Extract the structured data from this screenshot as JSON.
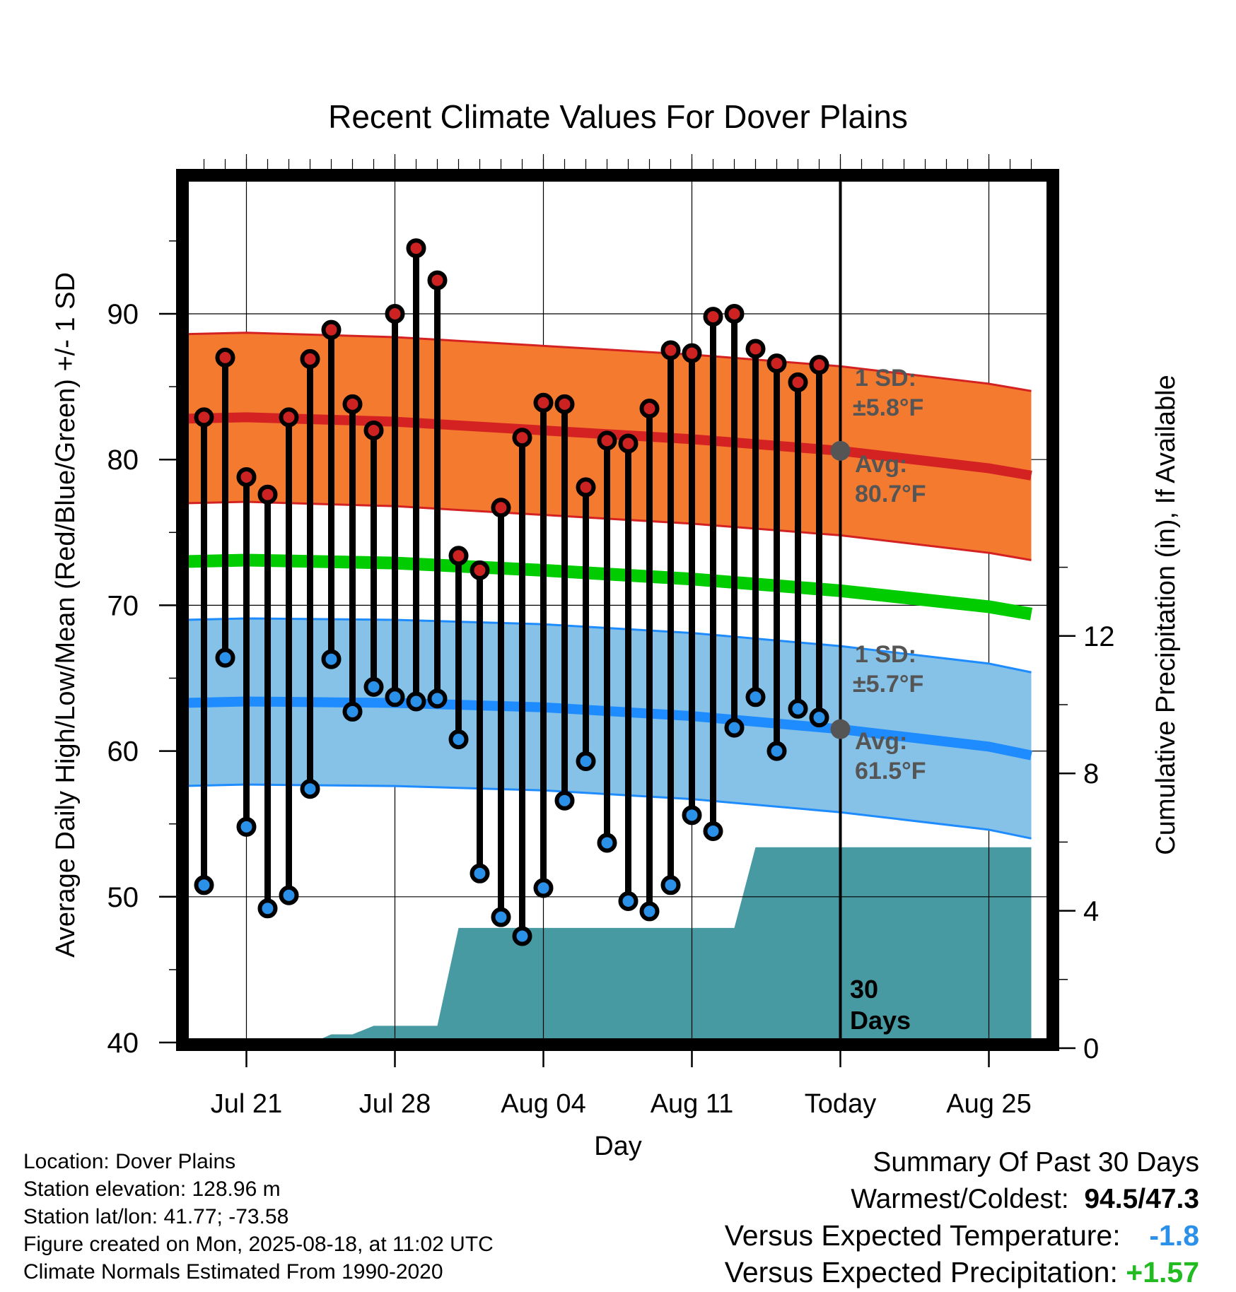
{
  "chart_data": {
    "type": "line",
    "title": "Recent Climate Values For Dover Plains",
    "xlabel": "Day",
    "ylabel_left": "Average Daily High/Low/Mean (Red/Blue/Green) +/- 1 SD",
    "ylabel_right": "Cumulative Precipitation (in), If Available",
    "x_range": [
      "2025-07-18",
      "2025-08-27"
    ],
    "ylim_left": [
      40,
      100
    ],
    "ylim_right": [
      0,
      18.3
    ],
    "x_ticks": [
      {
        "date": "2025-07-21",
        "label": "Jul 21"
      },
      {
        "date": "2025-07-28",
        "label": "Jul 28"
      },
      {
        "date": "2025-08-04",
        "label": "Aug 04"
      },
      {
        "date": "2025-08-11",
        "label": "Aug 11"
      },
      {
        "date": "2025-08-18",
        "label": "Today"
      },
      {
        "date": "2025-08-25",
        "label": "Aug 25"
      }
    ],
    "y_ticks_left": [
      40,
      50,
      60,
      70,
      80,
      90
    ],
    "y_ticks_right": [
      0,
      4,
      8,
      12
    ],
    "grid": true,
    "colors": {
      "high_band": "#f47a30",
      "high_line": "#d42222",
      "low_band": "#86c2e8",
      "low_line": "#1e8cff",
      "mean_line": "#00cc00",
      "precip": "#4799a2",
      "high_dot": "#cc2222",
      "low_dot": "#2a90e8",
      "annotation": "#555555"
    },
    "normals": {
      "x": [
        "2025-07-18",
        "2025-07-21",
        "2025-07-28",
        "2025-08-04",
        "2025-08-11",
        "2025-08-18",
        "2025-08-25",
        "2025-08-27"
      ],
      "high_avg": [
        82.8,
        82.9,
        82.6,
        82.0,
        81.4,
        80.6,
        79.4,
        78.9
      ],
      "low_avg": [
        63.3,
        63.4,
        63.3,
        63.0,
        62.4,
        61.5,
        60.3,
        59.7
      ],
      "mean_avg": [
        73.0,
        73.1,
        72.9,
        72.4,
        71.8,
        71.0,
        69.9,
        69.4
      ],
      "high_sd": 5.8,
      "low_sd": 5.7
    },
    "series": [
      {
        "name": "High",
        "x": [
          "2025-07-19",
          "2025-07-20",
          "2025-07-21",
          "2025-07-22",
          "2025-07-23",
          "2025-07-24",
          "2025-07-25",
          "2025-07-26",
          "2025-07-27",
          "2025-07-28",
          "2025-07-29",
          "2025-07-30",
          "2025-07-31",
          "2025-08-01",
          "2025-08-02",
          "2025-08-03",
          "2025-08-04",
          "2025-08-05",
          "2025-08-06",
          "2025-08-07",
          "2025-08-08",
          "2025-08-09",
          "2025-08-10",
          "2025-08-11",
          "2025-08-12",
          "2025-08-13",
          "2025-08-14",
          "2025-08-15",
          "2025-08-16",
          "2025-08-17"
        ],
        "values": [
          82.9,
          87.0,
          78.8,
          77.6,
          82.9,
          86.9,
          88.9,
          83.8,
          82.0,
          90.0,
          94.5,
          92.3,
          73.4,
          72.4,
          76.7,
          81.5,
          83.9,
          83.8,
          78.1,
          81.3,
          81.1,
          83.5,
          87.5,
          87.3,
          89.8,
          90.0,
          87.6,
          86.6,
          85.3,
          86.5
        ]
      },
      {
        "name": "Low",
        "x": [
          "2025-07-19",
          "2025-07-20",
          "2025-07-21",
          "2025-07-22",
          "2025-07-23",
          "2025-07-24",
          "2025-07-25",
          "2025-07-26",
          "2025-07-27",
          "2025-07-28",
          "2025-07-29",
          "2025-07-30",
          "2025-07-31",
          "2025-08-01",
          "2025-08-02",
          "2025-08-03",
          "2025-08-04",
          "2025-08-05",
          "2025-08-06",
          "2025-08-07",
          "2025-08-08",
          "2025-08-09",
          "2025-08-10",
          "2025-08-11",
          "2025-08-12",
          "2025-08-13",
          "2025-08-14",
          "2025-08-15",
          "2025-08-16",
          "2025-08-17"
        ],
        "values": [
          50.8,
          66.4,
          54.8,
          49.2,
          50.1,
          57.4,
          66.3,
          62.7,
          64.4,
          63.7,
          63.4,
          63.6,
          60.8,
          51.6,
          48.6,
          47.3,
          50.6,
          56.6,
          59.3,
          53.7,
          49.7,
          49.0,
          50.8,
          55.6,
          54.5,
          61.6,
          63.7,
          60.0,
          62.9,
          62.3
        ]
      }
    ],
    "precip_cumulative": {
      "x": [
        "2025-07-18",
        "2025-07-23.5",
        "2025-07-25",
        "2025-07-26",
        "2025-07-27",
        "2025-07-30",
        "2025-07-31",
        "2025-08-01",
        "2025-08-13",
        "2025-08-14",
        "2025-08-27"
      ],
      "values": [
        0.0,
        0.0,
        0.4,
        0.4,
        0.65,
        0.65,
        3.5,
        3.5,
        3.5,
        5.85,
        5.85
      ]
    },
    "annotations": {
      "high_sd_label": "1 SD:",
      "high_sd_value": "±5.8°F",
      "high_avg_label": "Avg:",
      "high_avg_value": "80.7°F",
      "low_sd_label": "1 SD:",
      "low_sd_value": "±5.7°F",
      "low_avg_label": "Avg:",
      "low_avg_value": "61.5°F",
      "days_line1": "30",
      "days_line2": "Days"
    }
  },
  "footer": {
    "location": "Location: Dover Plains",
    "elevation": "Station elevation: 128.96 m",
    "latlon": "Station lat/lon: 41.77; -73.58",
    "created": "Figure created on Mon, 2025-08-18, at 11:02 UTC",
    "normals": "Climate Normals Estimated From 1990-2020"
  },
  "summary": {
    "title": "Summary Of Past 30 Days",
    "warmest_label": "Warmest/Coldest:",
    "warmest_value": "94.5/47.3",
    "temp_label": "Versus Expected Temperature:",
    "temp_value": "-1.8",
    "temp_color": "#2a90e8",
    "precip_label": "Versus Expected Precipitation:",
    "precip_value": "+1.57",
    "precip_color": "#22bb22"
  }
}
